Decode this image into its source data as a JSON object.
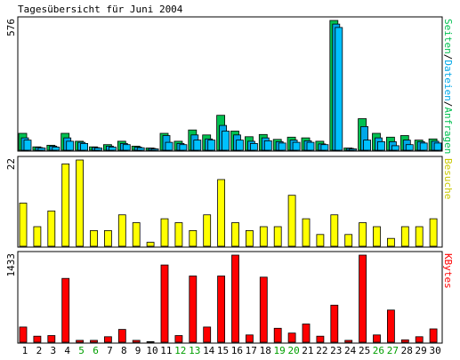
{
  "chart_data": {
    "type": "bar",
    "title": "Tagesübersicht für Juni 2004",
    "categories": [
      "1",
      "2",
      "3",
      "4",
      "5",
      "6",
      "7",
      "8",
      "9",
      "10",
      "11",
      "12",
      "13",
      "14",
      "15",
      "16",
      "17",
      "18",
      "19",
      "20",
      "21",
      "22",
      "23",
      "24",
      "25",
      "26",
      "27",
      "28",
      "29",
      "30"
    ],
    "weekend_days": [
      5,
      6,
      12,
      13,
      19,
      20,
      26,
      27
    ],
    "colors": {
      "pages": "#00c050",
      "files": "#00a8e8",
      "requests": "#00c0ff",
      "visits": "#ffff00",
      "kbytes": "#ff0000",
      "weekend_label": "#00a000",
      "weekday_label": "#000000"
    },
    "panels": [
      {
        "id": "hits",
        "max_label": "576",
        "max": 576,
        "legend": [
          {
            "text": "Seiten",
            "color": "#00c050"
          },
          {
            "text": "/",
            "color": "#000000"
          },
          {
            "text": "Dateien",
            "color": "#00a8e8"
          },
          {
            "text": "/",
            "color": "#000000"
          },
          {
            "text": "Anfragen",
            "color": "#00c050"
          }
        ],
        "series": [
          {
            "name": "Seiten",
            "values": [
              75,
              15,
              22,
              75,
              40,
              15,
              25,
              40,
              18,
              10,
              75,
              40,
              90,
              68,
              155,
              85,
              60,
              70,
              48,
              58,
              55,
              40,
              576,
              10,
              140,
              75,
              58,
              65,
              45,
              50
            ]
          },
          {
            "name": "Dateien",
            "values": [
              55,
              12,
              18,
              55,
              35,
              12,
              18,
              30,
              14,
              8,
              65,
              30,
              68,
              50,
              110,
              68,
              40,
              55,
              38,
              45,
              42,
              28,
              560,
              8,
              105,
              55,
              38,
              45,
              38,
              40
            ]
          },
          {
            "name": "Anfragen",
            "values": [
              45,
              10,
              14,
              40,
              30,
              10,
              14,
              25,
              11,
              6,
              35,
              25,
              45,
              45,
              85,
              45,
              30,
              42,
              32,
              35,
              35,
              25,
              545,
              6,
              45,
              38,
              20,
              25,
              32,
              32
            ]
          }
        ]
      },
      {
        "id": "visits",
        "max_label": "22",
        "max": 22,
        "legend": [
          {
            "text": "Besuche",
            "color": "#c8c800"
          }
        ],
        "series": [
          {
            "name": "Besuche",
            "values": [
              11,
              5,
              9,
              21,
              22,
              4,
              4,
              8,
              6,
              1,
              7,
              6,
              4,
              8,
              17,
              6,
              4,
              5,
              5,
              13,
              7,
              3,
              8,
              3,
              6,
              5,
              2,
              5,
              5,
              7
            ]
          }
        ]
      },
      {
        "id": "kbytes",
        "max_label": "1433",
        "max": 1433,
        "legend": [
          {
            "text": "KBytes",
            "color": "#ff0000"
          }
        ],
        "series": [
          {
            "name": "KBytes",
            "values": [
              250,
              100,
              110,
              1050,
              30,
              30,
              90,
              210,
              30,
              10,
              1270,
              110,
              1090,
              250,
              1090,
              1433,
              120,
              1070,
              230,
              150,
              300,
              100,
              610,
              30,
              1433,
              120,
              530,
              40,
              90,
              220
            ]
          }
        ]
      }
    ]
  }
}
